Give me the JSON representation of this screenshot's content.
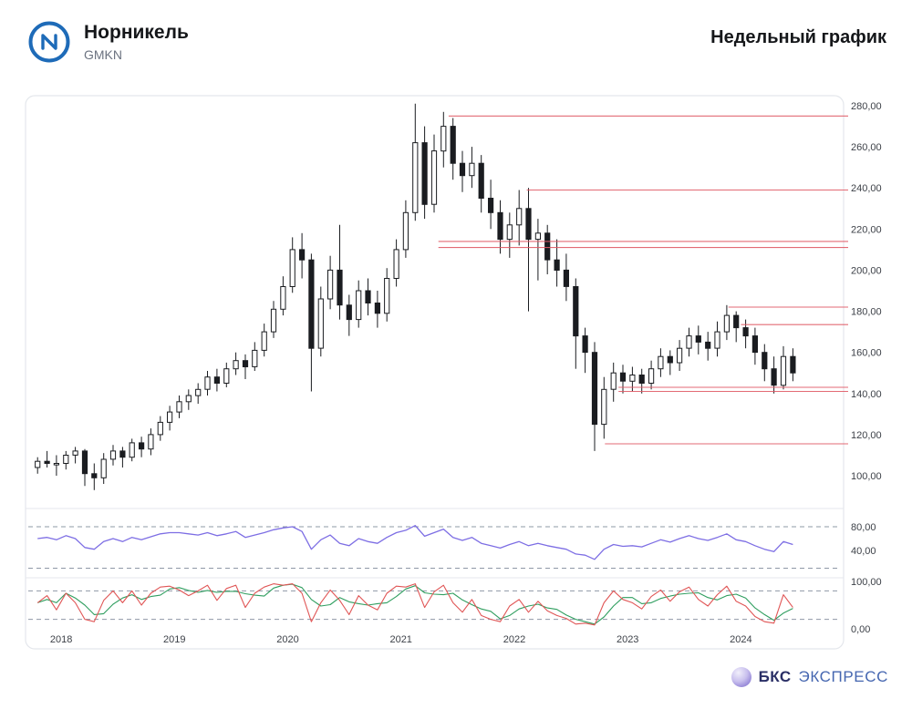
{
  "header": {
    "title": "Норникель",
    "ticker": "GMKN",
    "timeframe": "Недельный график"
  },
  "footer": {
    "brand_bold": "БКС",
    "brand_rest": "ЭКСПРЕСС"
  },
  "colors": {
    "candle": "#1a1c20",
    "level": "#e05a66",
    "rsi": "#7d6ee4",
    "stoch_k": "#e05555",
    "stoch_d": "#2f9e5f",
    "card_border": "#e4e7ec",
    "divider": "#e4e7ec",
    "axis_text": "#3d4148",
    "guide": "#8e98a6",
    "logo_blue": "#1e6bb8"
  },
  "chart_data": {
    "type": "candlestick",
    "timeframe": "weekly",
    "x_axis": {
      "range": [
        2017.75,
        2024.85
      ],
      "years": [
        {
          "label": "2018",
          "t": 2018
        },
        {
          "label": "2019",
          "t": 2019
        },
        {
          "label": "2020",
          "t": 2020
        },
        {
          "label": "2021",
          "t": 2021
        },
        {
          "label": "2022",
          "t": 2022
        },
        {
          "label": "2023",
          "t": 2023
        },
        {
          "label": "2024",
          "t": 2024
        }
      ]
    },
    "y_axis": {
      "ticks": [
        280,
        260,
        240,
        220,
        200,
        180,
        160,
        140,
        120,
        100
      ],
      "labels": [
        "280,00",
        "260,00",
        "240,00",
        "220,00",
        "200,00",
        "180,00",
        "160,00",
        "140,00",
        "120,00",
        "100,00"
      ],
      "range": [
        93,
        288
      ]
    },
    "candles": {
      "t0": 2017.792,
      "dt": 0.08333,
      "ohlc": [
        [
          104,
          109,
          101,
          107
        ],
        [
          107,
          112,
          104,
          106
        ],
        [
          106,
          110,
          100,
          106
        ],
        [
          106,
          112,
          103,
          110
        ],
        [
          110,
          114,
          106,
          112
        ],
        [
          112,
          113,
          95,
          101
        ],
        [
          101,
          106,
          93,
          99
        ],
        [
          99,
          111,
          96,
          108
        ],
        [
          108,
          115,
          105,
          112
        ],
        [
          112,
          114,
          104,
          109
        ],
        [
          109,
          118,
          107,
          116
        ],
        [
          116,
          119,
          109,
          113
        ],
        [
          113,
          123,
          110,
          120
        ],
        [
          120,
          129,
          117,
          126
        ],
        [
          126,
          134,
          122,
          131
        ],
        [
          131,
          139,
          128,
          136
        ],
        [
          136,
          142,
          132,
          139
        ],
        [
          139,
          145,
          135,
          142
        ],
        [
          142,
          151,
          139,
          148
        ],
        [
          148,
          152,
          141,
          145
        ],
        [
          145,
          155,
          143,
          152
        ],
        [
          152,
          160,
          149,
          156
        ],
        [
          156,
          159,
          147,
          153
        ],
        [
          153,
          165,
          151,
          161
        ],
        [
          161,
          174,
          158,
          170
        ],
        [
          170,
          185,
          167,
          181
        ],
        [
          181,
          197,
          178,
          192
        ],
        [
          192,
          216,
          189,
          210
        ],
        [
          210,
          218,
          196,
          205
        ],
        [
          205,
          208,
          141,
          162
        ],
        [
          162,
          192,
          158,
          186
        ],
        [
          186,
          207,
          181,
          200
        ],
        [
          200,
          222,
          176,
          183
        ],
        [
          183,
          188,
          168,
          176
        ],
        [
          176,
          195,
          172,
          190
        ],
        [
          190,
          196,
          178,
          184
        ],
        [
          184,
          190,
          172,
          179
        ],
        [
          179,
          201,
          175,
          196
        ],
        [
          196,
          215,
          192,
          210
        ],
        [
          210,
          234,
          206,
          228
        ],
        [
          228,
          281,
          224,
          262
        ],
        [
          262,
          270,
          225,
          232
        ],
        [
          232,
          266,
          228,
          258
        ],
        [
          258,
          277,
          250,
          270
        ],
        [
          270,
          274,
          244,
          252
        ],
        [
          252,
          258,
          238,
          246
        ],
        [
          246,
          260,
          240,
          252
        ],
        [
          252,
          256,
          228,
          235
        ],
        [
          235,
          244,
          220,
          228
        ],
        [
          228,
          234,
          208,
          215
        ],
        [
          215,
          228,
          206,
          222
        ],
        [
          222,
          239,
          212,
          230
        ],
        [
          230,
          240,
          180,
          215
        ],
        [
          215,
          225,
          195,
          218
        ],
        [
          218,
          222,
          198,
          205
        ],
        [
          205,
          215,
          192,
          200
        ],
        [
          200,
          208,
          185,
          192
        ],
        [
          192,
          196,
          152,
          168
        ],
        [
          168,
          172,
          150,
          160
        ],
        [
          160,
          165,
          112,
          125
        ],
        [
          125,
          148,
          118,
          142
        ],
        [
          142,
          155,
          136,
          150
        ],
        [
          150,
          154,
          140,
          146
        ],
        [
          146,
          153,
          141,
          149
        ],
        [
          149,
          152,
          140,
          145
        ],
        [
          145,
          156,
          142,
          152
        ],
        [
          152,
          162,
          148,
          158
        ],
        [
          158,
          161,
          149,
          155
        ],
        [
          155,
          166,
          151,
          162
        ],
        [
          162,
          172,
          158,
          168
        ],
        [
          168,
          173,
          159,
          165
        ],
        [
          165,
          170,
          156,
          162
        ],
        [
          162,
          175,
          158,
          170
        ],
        [
          170,
          183,
          166,
          178
        ],
        [
          178,
          180,
          165,
          172
        ],
        [
          172,
          176,
          162,
          168
        ],
        [
          168,
          172,
          154,
          160
        ],
        [
          160,
          164,
          146,
          152
        ],
        [
          152,
          158,
          140,
          144
        ],
        [
          144,
          163,
          142,
          158
        ],
        [
          158,
          162,
          146,
          150
        ]
      ]
    },
    "levels": [
      {
        "price": 275,
        "from": 2021.42
      },
      {
        "price": 239,
        "from": 2022.11
      },
      {
        "price": 214,
        "from": 2021.33
      },
      {
        "price": 211,
        "from": 2021.33
      },
      {
        "price": 182,
        "from": 2023.89
      },
      {
        "price": 173.5,
        "from": 2024.0
      },
      {
        "price": 143,
        "from": 2022.92
      },
      {
        "price": 141,
        "from": 2022.92
      },
      {
        "price": 115.5,
        "from": 2022.8
      }
    ],
    "indicators": {
      "rsi": {
        "name": "RSI",
        "range": [
          0,
          100
        ],
        "guides": [
          80,
          10
        ],
        "axis": [
          {
            "value": 80,
            "label": "80,00"
          },
          {
            "value": 40,
            "label": "40,00"
          }
        ],
        "t0": 2017.792,
        "dt": 0.08333,
        "values": [
          60,
          62,
          58,
          65,
          60,
          45,
          42,
          55,
          60,
          55,
          62,
          58,
          63,
          68,
          70,
          70,
          68,
          66,
          70,
          65,
          68,
          72,
          62,
          66,
          70,
          75,
          78,
          80,
          72,
          42,
          58,
          66,
          52,
          48,
          60,
          55,
          52,
          62,
          70,
          74,
          82,
          64,
          70,
          76,
          62,
          57,
          62,
          52,
          48,
          44,
          50,
          55,
          48,
          52,
          48,
          45,
          42,
          34,
          32,
          25,
          42,
          50,
          47,
          48,
          46,
          52,
          58,
          54,
          60,
          65,
          60,
          57,
          62,
          68,
          58,
          55,
          48,
          42,
          38,
          55,
          50
        ]
      },
      "stochastic": {
        "name": "Stochastic",
        "range": [
          0,
          100
        ],
        "guides": [
          80,
          20
        ],
        "axis": [
          {
            "value": 100,
            "label": "100,00"
          },
          {
            "value": 0,
            "label": "0,00"
          }
        ],
        "t0": 2017.792,
        "dt": 0.08333,
        "k": [
          55,
          70,
          40,
          75,
          55,
          20,
          15,
          60,
          80,
          55,
          80,
          50,
          75,
          88,
          90,
          82,
          70,
          80,
          92,
          60,
          85,
          92,
          45,
          75,
          88,
          95,
          92,
          95,
          75,
          15,
          55,
          82,
          60,
          30,
          70,
          50,
          40,
          75,
          90,
          88,
          95,
          45,
          78,
          92,
          55,
          35,
          62,
          28,
          20,
          15,
          48,
          62,
          35,
          58,
          38,
          28,
          22,
          10,
          12,
          8,
          55,
          80,
          62,
          55,
          42,
          68,
          82,
          58,
          78,
          88,
          62,
          48,
          72,
          90,
          58,
          48,
          26,
          15,
          12,
          72,
          45
        ],
        "d": [
          55,
          62,
          55,
          75,
          65,
          50,
          30,
          32,
          52,
          65,
          72,
          62,
          68,
          71,
          84,
          87,
          81,
          77,
          81,
          77,
          79,
          79,
          74,
          71,
          69,
          86,
          92,
          94,
          87,
          62,
          48,
          51,
          66,
          57,
          53,
          50,
          53,
          55,
          68,
          84,
          91,
          76,
          73,
          72,
          75,
          61,
          51,
          42,
          37,
          21,
          28,
          42,
          48,
          52,
          44,
          41,
          29,
          20,
          15,
          10,
          25,
          48,
          66,
          66,
          53,
          55,
          64,
          69,
          73,
          75,
          76,
          66,
          61,
          70,
          73,
          65,
          44,
          30,
          18,
          33,
          43
        ]
      }
    }
  }
}
